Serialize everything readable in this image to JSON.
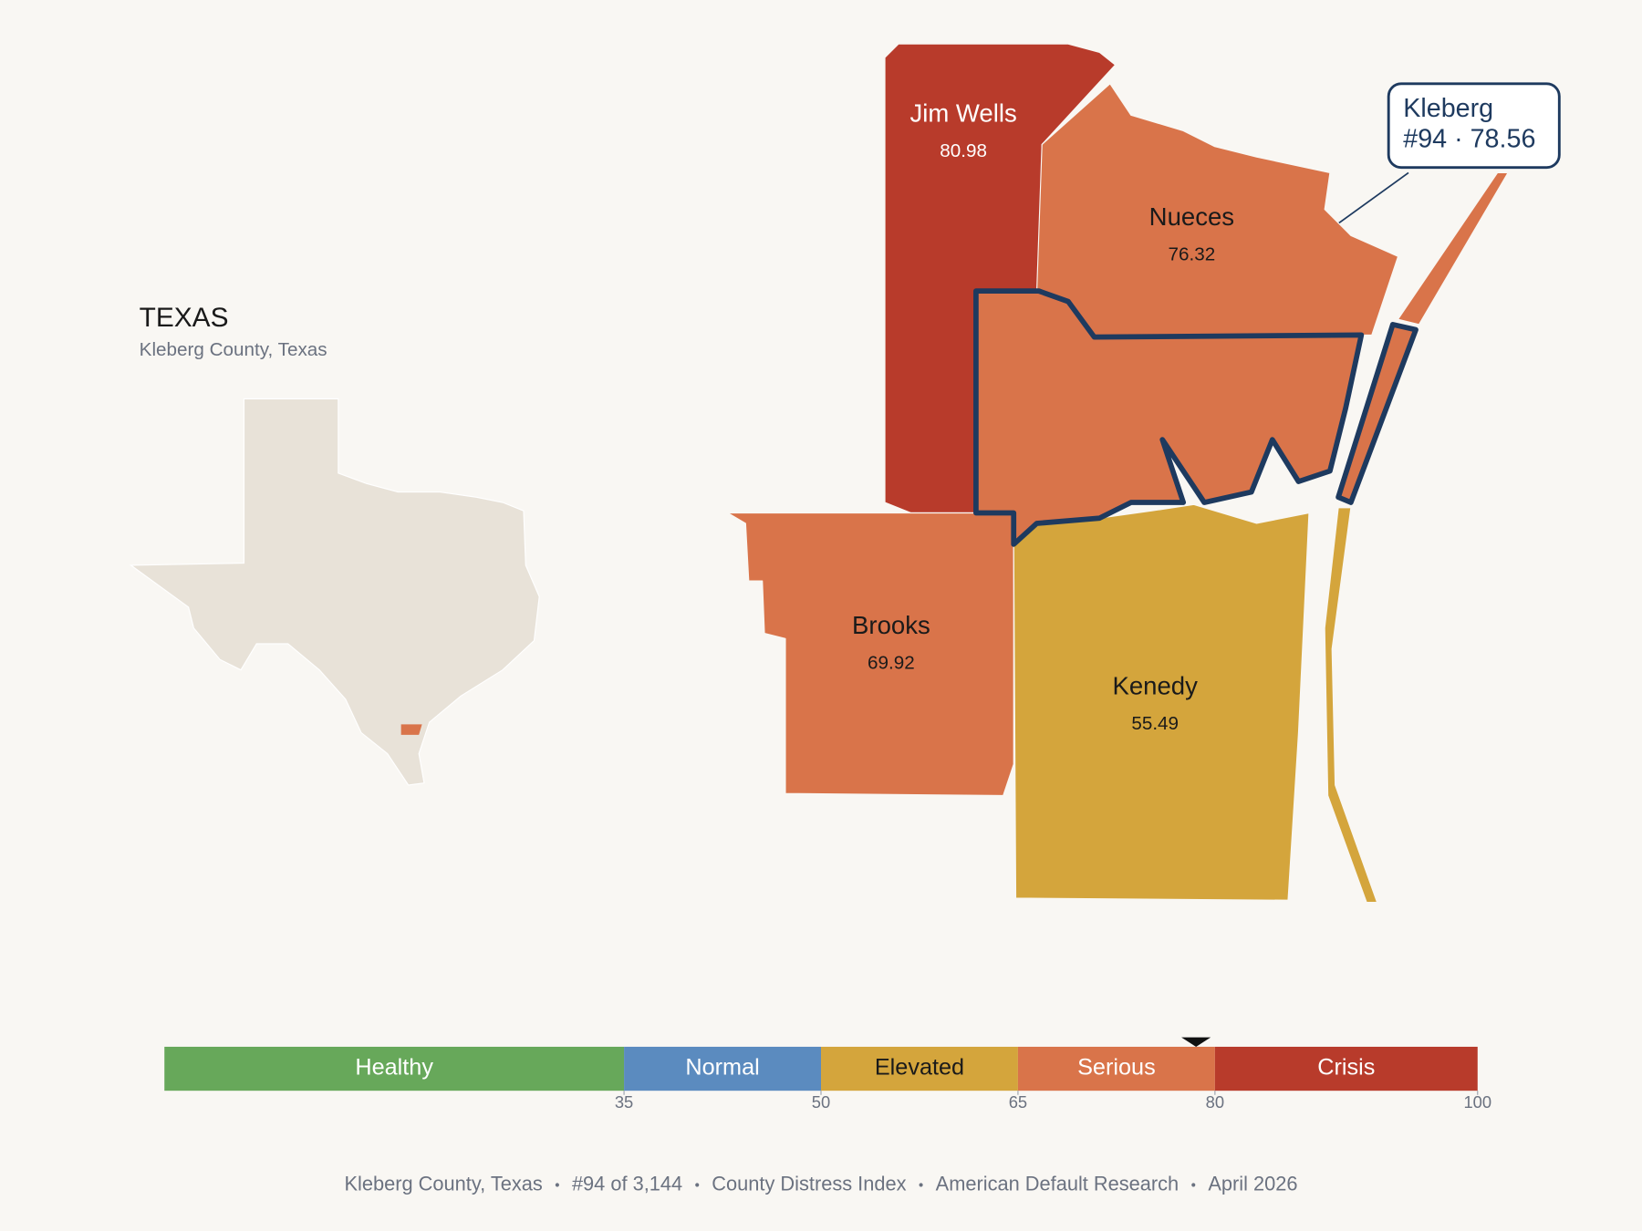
{
  "inset": {
    "title": "TEXAS",
    "subtitle": "Kleberg County, Texas"
  },
  "counties": [
    {
      "name": "Jim Wells",
      "value": 80.98
    },
    {
      "name": "Nueces",
      "value": 76.32
    },
    {
      "name": "Brooks",
      "value": 69.92
    },
    {
      "name": "Kenedy",
      "value": 55.49
    },
    {
      "name": "Kleberg",
      "value": 78.56
    }
  ],
  "callout": {
    "detail": "#94 · 78.56"
  },
  "scale": {
    "lim": [
      0,
      100
    ],
    "ticks": [
      35,
      50,
      65,
      80,
      100
    ],
    "bands": [
      {
        "label": "Healthy",
        "color": "#67a85a"
      },
      {
        "label": "Normal",
        "color": "#5b8bbf"
      },
      {
        "label": "Elevated",
        "color": "#d4a53c"
      },
      {
        "label": "Serious",
        "color": "#d9744a"
      },
      {
        "label": "Crisis",
        "color": "#b83b2b"
      }
    ]
  },
  "footer": [
    "Kleberg County, Texas",
    "#94 of 3,144",
    "County Distress Index",
    "American Default Research",
    "April 2026"
  ]
}
